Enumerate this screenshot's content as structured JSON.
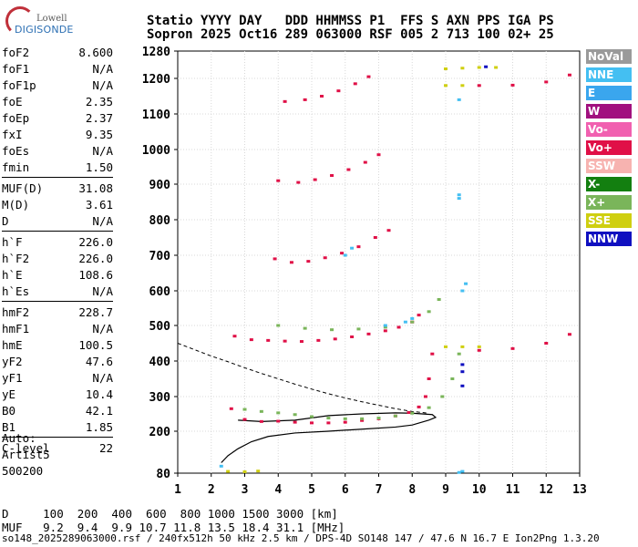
{
  "logo": {
    "line1": "Lowell",
    "line2": "DIGISONDE"
  },
  "header": {
    "line1": "Statio YYYY DAY   DDD HHMMSS P1  FFS S AXN PPS IGA PS",
    "line2": "Sopron 2025 Oct16 289 063000 RSF 005 2 713 100 02+ 25"
  },
  "params": [
    {
      "k": "foF2",
      "v": "8.600"
    },
    {
      "k": "foF1",
      "v": "N/A"
    },
    {
      "k": "foF1p",
      "v": "N/A"
    },
    {
      "k": "foE",
      "v": "2.35"
    },
    {
      "k": "foEp",
      "v": "2.37"
    },
    {
      "k": "fxI",
      "v": "9.35"
    },
    {
      "k": "foEs",
      "v": "N/A"
    },
    {
      "k": "fmin",
      "v": "1.50"
    },
    {
      "k": "MUF(D)",
      "v": "31.08"
    },
    {
      "k": "M(D)",
      "v": "3.61"
    },
    {
      "k": "D",
      "v": "N/A"
    },
    {
      "k": "h`F",
      "v": "226.0"
    },
    {
      "k": "h`F2",
      "v": "226.0"
    },
    {
      "k": "h`E",
      "v": "108.6"
    },
    {
      "k": "h`Es",
      "v": "N/A"
    },
    {
      "k": "hmF2",
      "v": "228.7"
    },
    {
      "k": "hmF1",
      "v": "N/A"
    },
    {
      "k": "hmE",
      "v": "100.5"
    },
    {
      "k": "yF2",
      "v": "47.6"
    },
    {
      "k": "yF1",
      "v": "N/A"
    },
    {
      "k": "yE",
      "v": "10.4"
    },
    {
      "k": "B0",
      "v": "42.1"
    },
    {
      "k": "B1",
      "v": "1.85"
    },
    {
      "k": "C-level",
      "v": "22"
    }
  ],
  "auto": {
    "l1": "Auto:",
    "l2": "Artist5",
    "l3": "500200"
  },
  "legend": [
    {
      "label": "NoVal",
      "color": "#9a9a9a"
    },
    {
      "label": "NNE",
      "color": "#44bff2"
    },
    {
      "label": "E",
      "color": "#3aa6ee"
    },
    {
      "label": "W",
      "color": "#a1107f"
    },
    {
      "label": "Vo-",
      "color": "#f160b0"
    },
    {
      "label": "Vo+",
      "color": "#e01047"
    },
    {
      "label": "SSW",
      "color": "#f7b3b0"
    },
    {
      "label": "X-",
      "color": "#137f10"
    },
    {
      "label": "X+",
      "color": "#7ab55a"
    },
    {
      "label": "SSE",
      "color": "#cfcf10"
    },
    {
      "label": "NNW",
      "color": "#1010c0"
    }
  ],
  "bottom": {
    "line1": "D     100  200  400  600  800 1000 1500 3000 [km]",
    "line2": "MUF   9.2  9.4  9.9 10.7 11.8 13.5 18.4 31.1 [MHz]"
  },
  "footer": "so148_2025289063000.rsf / 240fx512h 50 kHz 2.5 km / DPS-4D SO148 147 / 47.6 N 16.7 E Ion2Png 1.3.20",
  "chart_data": {
    "type": "scatter",
    "xlim": [
      1,
      13
    ],
    "ylim": [
      80,
      1280
    ],
    "x_ticks": [
      1,
      2,
      3,
      4,
      5,
      6,
      7,
      8,
      9,
      10,
      11,
      12,
      13
    ],
    "y_ticks": [
      80,
      200,
      300,
      400,
      500,
      600,
      700,
      800,
      900,
      1000,
      1100,
      1200,
      1280
    ],
    "grid": true,
    "series": [
      {
        "name": "Vo+",
        "color": "#e01047",
        "points": [
          [
            2.6,
            265
          ],
          [
            3.0,
            234
          ],
          [
            3.5,
            228
          ],
          [
            4.0,
            229
          ],
          [
            4.5,
            226
          ],
          [
            5.0,
            224
          ],
          [
            5.5,
            224
          ],
          [
            6.0,
            226
          ],
          [
            6.5,
            231
          ],
          [
            7.0,
            236
          ],
          [
            7.5,
            244
          ],
          [
            7.9,
            254
          ],
          [
            8.2,
            270
          ],
          [
            8.4,
            300
          ],
          [
            8.5,
            350
          ],
          [
            8.6,
            420
          ],
          [
            2.7,
            470
          ],
          [
            3.2,
            460
          ],
          [
            3.7,
            458
          ],
          [
            4.2,
            456
          ],
          [
            4.7,
            455
          ],
          [
            5.2,
            458
          ],
          [
            5.7,
            462
          ],
          [
            6.2,
            468
          ],
          [
            6.7,
            476
          ],
          [
            7.2,
            485
          ],
          [
            7.6,
            495
          ],
          [
            8.0,
            510
          ],
          [
            8.2,
            530
          ],
          [
            3.9,
            690
          ],
          [
            4.4,
            680
          ],
          [
            4.9,
            683
          ],
          [
            5.4,
            693
          ],
          [
            5.9,
            706
          ],
          [
            6.4,
            724
          ],
          [
            6.9,
            750
          ],
          [
            7.3,
            770
          ],
          [
            4.0,
            910
          ],
          [
            4.6,
            905
          ],
          [
            5.1,
            913
          ],
          [
            5.6,
            925
          ],
          [
            6.1,
            942
          ],
          [
            6.6,
            963
          ],
          [
            7.0,
            985
          ],
          [
            4.2,
            1135
          ],
          [
            4.8,
            1140
          ],
          [
            5.3,
            1150
          ],
          [
            5.8,
            1165
          ],
          [
            6.3,
            1185
          ],
          [
            6.7,
            1205
          ],
          [
            10.0,
            430
          ],
          [
            11.0,
            435
          ],
          [
            12.0,
            450
          ],
          [
            12.7,
            475
          ],
          [
            10.0,
            1180
          ],
          [
            11.0,
            1181
          ],
          [
            12.0,
            1190
          ],
          [
            12.7,
            1210
          ]
        ]
      },
      {
        "name": "X+",
        "color": "#7ab55a",
        "points": [
          [
            3.0,
            263
          ],
          [
            3.5,
            257
          ],
          [
            4.0,
            253
          ],
          [
            4.5,
            248
          ],
          [
            5.0,
            242
          ],
          [
            5.5,
            238
          ],
          [
            6.0,
            236
          ],
          [
            6.5,
            236
          ],
          [
            7.0,
            238
          ],
          [
            7.5,
            244
          ],
          [
            8.0,
            252
          ],
          [
            8.5,
            268
          ],
          [
            8.9,
            300
          ],
          [
            9.2,
            350
          ],
          [
            9.4,
            420
          ],
          [
            4.0,
            500
          ],
          [
            4.8,
            492
          ],
          [
            5.6,
            488
          ],
          [
            6.4,
            490
          ],
          [
            7.2,
            495
          ],
          [
            8.0,
            510
          ],
          [
            8.5,
            540
          ],
          [
            8.8,
            575
          ]
        ]
      },
      {
        "name": "SSE",
        "color": "#cfcf10",
        "points": [
          [
            9.0,
            1228
          ],
          [
            9.5,
            1230
          ],
          [
            10.0,
            1232
          ],
          [
            10.5,
            1232
          ],
          [
            9.0,
            1180
          ],
          [
            9.5,
            1180
          ],
          [
            9.0,
            440
          ],
          [
            9.5,
            440
          ],
          [
            10.0,
            440
          ],
          [
            2.5,
            85
          ],
          [
            3.0,
            84
          ],
          [
            3.4,
            86
          ]
        ]
      },
      {
        "name": "NNE",
        "color": "#44bff2",
        "points": [
          [
            9.4,
            1140
          ],
          [
            9.4,
            870
          ],
          [
            9.4,
            860
          ],
          [
            9.6,
            620
          ],
          [
            9.5,
            600
          ],
          [
            2.3,
            100
          ],
          [
            9.5,
            85
          ],
          [
            9.4,
            82
          ],
          [
            8.0,
            520
          ],
          [
            7.8,
            510
          ],
          [
            7.2,
            500
          ],
          [
            6.0,
            700
          ],
          [
            6.2,
            720
          ]
        ]
      },
      {
        "name": "NNW",
        "color": "#1010c0",
        "points": [
          [
            9.5,
            390
          ],
          [
            9.5,
            370
          ],
          [
            9.5,
            330
          ],
          [
            10.2,
            1234
          ]
        ]
      }
    ],
    "profile_curve": {
      "name": "profile",
      "points": [
        [
          2.3,
          110
        ],
        [
          2.5,
          130
        ],
        [
          2.8,
          150
        ],
        [
          3.2,
          170
        ],
        [
          3.7,
          185
        ],
        [
          4.5,
          195
        ],
        [
          5.5,
          200
        ],
        [
          6.5,
          206
        ],
        [
          7.5,
          212
        ],
        [
          8.0,
          218
        ],
        [
          8.5,
          232
        ],
        [
          8.7,
          240
        ],
        [
          8.6,
          248
        ],
        [
          8.0,
          252
        ],
        [
          7.5,
          253
        ],
        [
          6.5,
          250
        ],
        [
          5.5,
          245
        ],
        [
          4.5,
          232
        ],
        [
          3.5,
          228
        ],
        [
          2.8,
          232
        ]
      ]
    },
    "dashed_curve": {
      "name": "dashed",
      "points": [
        [
          1.0,
          450
        ],
        [
          1.5,
          432
        ],
        [
          2.0,
          414
        ],
        [
          2.5,
          398
        ],
        [
          3.0,
          381
        ],
        [
          3.5,
          365
        ],
        [
          4.0,
          350
        ],
        [
          4.5,
          335
        ],
        [
          5.0,
          321
        ],
        [
          5.5,
          308
        ],
        [
          6.0,
          296
        ],
        [
          6.5,
          285
        ],
        [
          7.0,
          275
        ],
        [
          7.5,
          265
        ],
        [
          8.0,
          257
        ],
        [
          8.5,
          252
        ]
      ]
    }
  }
}
